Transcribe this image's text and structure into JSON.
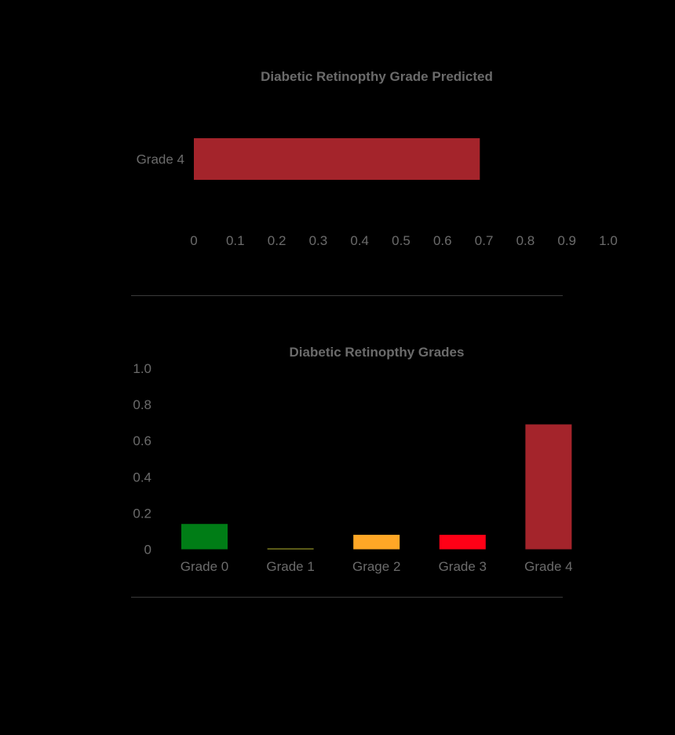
{
  "chart_data": [
    {
      "type": "bar",
      "orientation": "horizontal",
      "title": "Diabetic Retinopthy Grade Predicted",
      "categories": [
        "Grade 4"
      ],
      "values": [
        0.69
      ],
      "colors": [
        "#a4242b"
      ],
      "xlim": [
        0,
        1.0
      ],
      "xticks": [
        "0",
        "0.1",
        "0.2",
        "0.3",
        "0.4",
        "0.5",
        "0.6",
        "0.7",
        "0.8",
        "0.9",
        "1.0"
      ],
      "grid": false
    },
    {
      "type": "bar",
      "orientation": "vertical",
      "title": "Diabetic Retinopthy Grades",
      "categories": [
        "Grade 0",
        "Grade 1",
        "Grage 2",
        "Grade 3",
        "Grade 4"
      ],
      "values": [
        0.14,
        0.003,
        0.08,
        0.08,
        0.69
      ],
      "colors": [
        "#007d16",
        "#b5b52e",
        "#ffa726",
        "#ff0016",
        "#a4242b"
      ],
      "ylim": [
        0,
        1.0
      ],
      "yticks": [
        "0",
        "0.2",
        "0.4",
        "0.6",
        "0.8",
        "1.0"
      ],
      "grid": false
    }
  ]
}
